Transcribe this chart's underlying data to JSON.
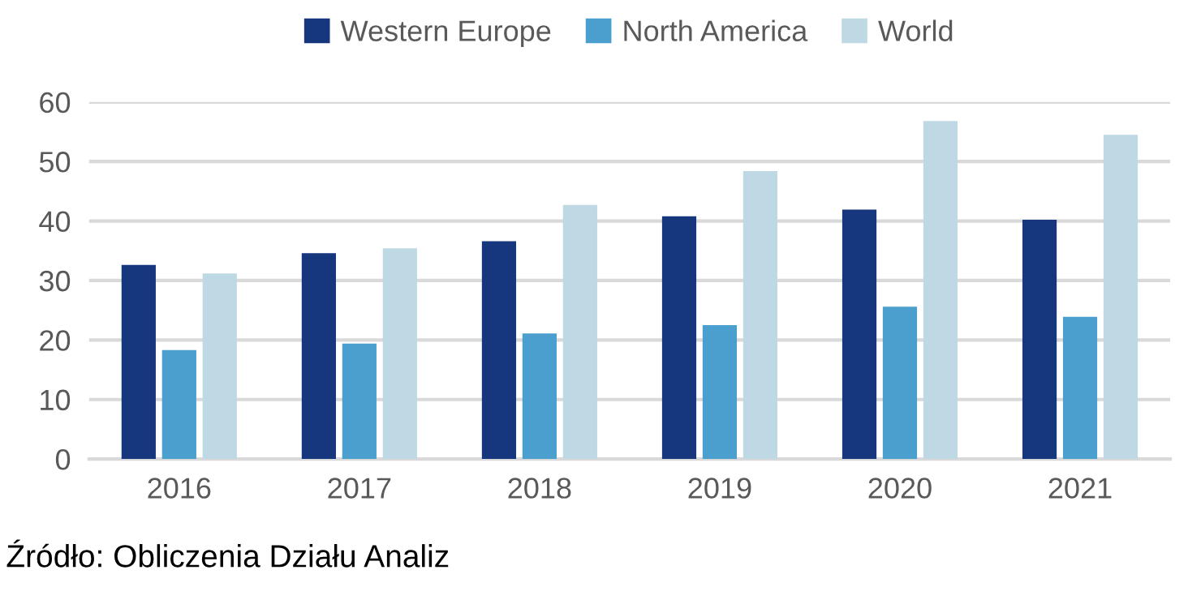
{
  "chart_data": {
    "type": "bar",
    "categories": [
      "2016",
      "2017",
      "2018",
      "2019",
      "2020",
      "2021"
    ],
    "series": [
      {
        "name": "Western Europe",
        "color": "#16367d",
        "values": [
          32.6,
          34.6,
          36.6,
          40.8,
          41.9,
          40.2
        ]
      },
      {
        "name": "North America",
        "color": "#4a9fcf",
        "values": [
          18.3,
          19.4,
          21.1,
          22.5,
          25.6,
          23.9
        ]
      },
      {
        "name": "World",
        "color": "#bed9e4",
        "values": [
          31.2,
          35.4,
          42.7,
          48.4,
          56.8,
          54.5
        ]
      }
    ],
    "ylim": [
      0,
      60
    ],
    "yticks": [
      0,
      10,
      20,
      30,
      40,
      50,
      60
    ],
    "grid": "y",
    "legend": "top",
    "annotations": [
      "Źródło: Obliczenia Działu Analiz"
    ]
  }
}
